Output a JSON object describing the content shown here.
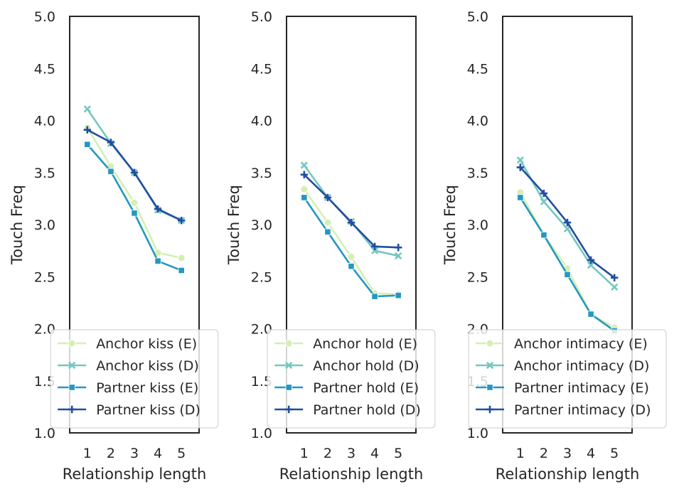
{
  "colors": {
    "anchor_e": "#d5efb3",
    "anchor_d": "#73c8bd",
    "partner_e": "#2498c1",
    "partner_d": "#234da0",
    "frame": "#262626",
    "legend_border": "#cccccc"
  },
  "chart_data": [
    {
      "type": "line",
      "xlabel": "Relationship length",
      "ylabel": "Touch Freq",
      "ylim": [
        1.0,
        5.0
      ],
      "yticks": [
        "1.0",
        "1.5",
        "2.0",
        "2.5",
        "3.0",
        "3.5",
        "4.0",
        "4.5",
        "5.0"
      ],
      "x": [
        1,
        2,
        3,
        4,
        5
      ],
      "xticks": [
        "1",
        "2",
        "3",
        "4",
        "5"
      ],
      "grid": false,
      "legend_position": "lower-center",
      "series": [
        {
          "name": "Anchor kiss (E)",
          "marker": "circle",
          "color_key": "anchor_e",
          "values": [
            3.93,
            3.56,
            3.21,
            2.73,
            2.68
          ]
        },
        {
          "name": "Anchor kiss (D)",
          "marker": "x",
          "color_key": "anchor_d",
          "values": [
            4.11,
            3.78,
            3.5,
            3.14,
            3.04
          ]
        },
        {
          "name": "Partner kiss (E)",
          "marker": "square",
          "color_key": "partner_e",
          "values": [
            3.77,
            3.51,
            3.11,
            2.65,
            2.56
          ]
        },
        {
          "name": "Partner kiss (D)",
          "marker": "plus",
          "color_key": "partner_d",
          "values": [
            3.91,
            3.79,
            3.5,
            3.15,
            3.04
          ]
        }
      ]
    },
    {
      "type": "line",
      "xlabel": "Relationship length",
      "ylabel": "Touch Freq",
      "ylim": [
        1.0,
        5.0
      ],
      "yticks": [
        "1.0",
        "1.5",
        "2.0",
        "2.5",
        "3.0",
        "3.5",
        "4.0",
        "4.5",
        "5.0"
      ],
      "x": [
        1,
        2,
        3,
        4,
        5
      ],
      "xticks": [
        "1",
        "2",
        "3",
        "4",
        "5"
      ],
      "grid": false,
      "legend_position": "lower-center",
      "series": [
        {
          "name": "Anchor hold (E)",
          "marker": "circle",
          "color_key": "anchor_e",
          "values": [
            3.34,
            3.02,
            2.69,
            2.34,
            2.33
          ]
        },
        {
          "name": "Anchor hold (D)",
          "marker": "x",
          "color_key": "anchor_d",
          "values": [
            3.57,
            3.26,
            3.03,
            2.75,
            2.7
          ]
        },
        {
          "name": "Partner hold (E)",
          "marker": "square",
          "color_key": "partner_e",
          "values": [
            3.26,
            2.93,
            2.6,
            2.31,
            2.32
          ]
        },
        {
          "name": "Partner hold (D)",
          "marker": "plus",
          "color_key": "partner_d",
          "values": [
            3.48,
            3.26,
            3.02,
            2.79,
            2.78
          ]
        }
      ]
    },
    {
      "type": "line",
      "xlabel": "Relationship length",
      "ylabel": "Touch Freq",
      "ylim": [
        1.0,
        5.0
      ],
      "yticks": [
        "1.0",
        "1.5",
        "2.0",
        "2.5",
        "3.0",
        "3.5",
        "4.0",
        "4.5",
        "5.0"
      ],
      "x": [
        1,
        2,
        3,
        4,
        5
      ],
      "xticks": [
        "1",
        "2",
        "3",
        "4",
        "5"
      ],
      "grid": false,
      "legend_position": "lower-center",
      "series": [
        {
          "name": "Anchor intimacy (E)",
          "marker": "circle",
          "color_key": "anchor_e",
          "values": [
            3.31,
            2.9,
            2.58,
            2.14,
            2.01
          ]
        },
        {
          "name": "Anchor intimacy (D)",
          "marker": "x",
          "color_key": "anchor_d",
          "values": [
            3.62,
            3.22,
            2.96,
            2.61,
            2.4
          ]
        },
        {
          "name": "Partner intimacy (E)",
          "marker": "square",
          "color_key": "partner_e",
          "values": [
            3.26,
            2.9,
            2.52,
            2.14,
            1.98
          ]
        },
        {
          "name": "Partner intimacy (D)",
          "marker": "plus",
          "color_key": "partner_d",
          "values": [
            3.55,
            3.3,
            3.02,
            2.66,
            2.49
          ]
        }
      ]
    }
  ]
}
